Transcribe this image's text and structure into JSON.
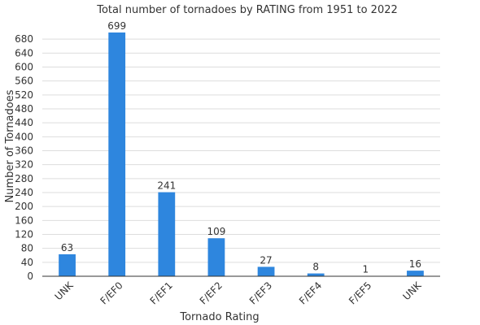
{
  "chart_data": {
    "type": "bar",
    "title": "Total number of tornadoes by RATING from 1951 to 2022",
    "xlabel": "Tornado Rating",
    "ylabel": "Number of Tornadoes",
    "categories": [
      "UNK",
      "F/EF0",
      "F/EF1",
      "F/EF2",
      "F/EF3",
      "F/EF4",
      "F/EF5",
      "UNK"
    ],
    "values": [
      63,
      699,
      241,
      109,
      27,
      8,
      1,
      16
    ],
    "ylim": [
      0,
      699
    ],
    "yticks": [
      0,
      40,
      80,
      120,
      160,
      200,
      240,
      280,
      320,
      360,
      400,
      440,
      480,
      520,
      560,
      600,
      640,
      680
    ],
    "bar_color": "#2e86de",
    "grid": true,
    "legend": "none"
  }
}
